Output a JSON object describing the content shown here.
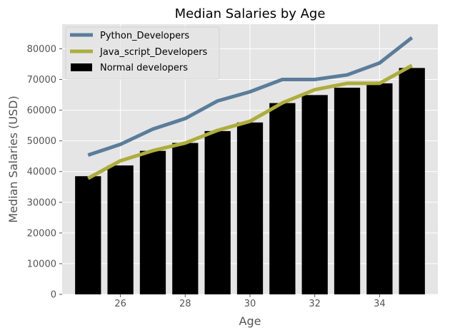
{
  "chart_data": {
    "type": "bar",
    "title": "Median Salaries by Age",
    "xlabel": "Age",
    "ylabel": "Median Salaries (USD)",
    "x": [
      25,
      26,
      27,
      28,
      29,
      30,
      31,
      32,
      33,
      34,
      35
    ],
    "xticks": [
      26,
      28,
      30,
      32,
      34
    ],
    "xlim": [
      24.2,
      35.8
    ],
    "ylim": [
      0,
      88000
    ],
    "yticks": [
      0,
      10000,
      20000,
      30000,
      40000,
      50000,
      60000,
      70000,
      80000
    ],
    "grid": true,
    "legend_position": "top-left",
    "bars": {
      "name": "Normal developers",
      "color": "#000000",
      "values": [
        38496,
        42000,
        46752,
        49320,
        53200,
        56000,
        62316,
        64928,
        67317,
        68748,
        73752
      ]
    },
    "series": [
      {
        "name": "Python_Developers",
        "color": "#5a7d9a",
        "values": [
          45372,
          48876,
          53850,
          57287,
          63016,
          65998,
          70003,
          70000,
          71496,
          75370,
          83640
        ]
      },
      {
        "name": "Java_script_Developers",
        "color": "#adad3b",
        "values": [
          37810,
          43515,
          46823,
          49293,
          53437,
          56373,
          62375,
          66674,
          68745,
          68746,
          74583
        ]
      }
    ],
    "background": "#e5e5e5",
    "grid_color": "#ffffff"
  }
}
